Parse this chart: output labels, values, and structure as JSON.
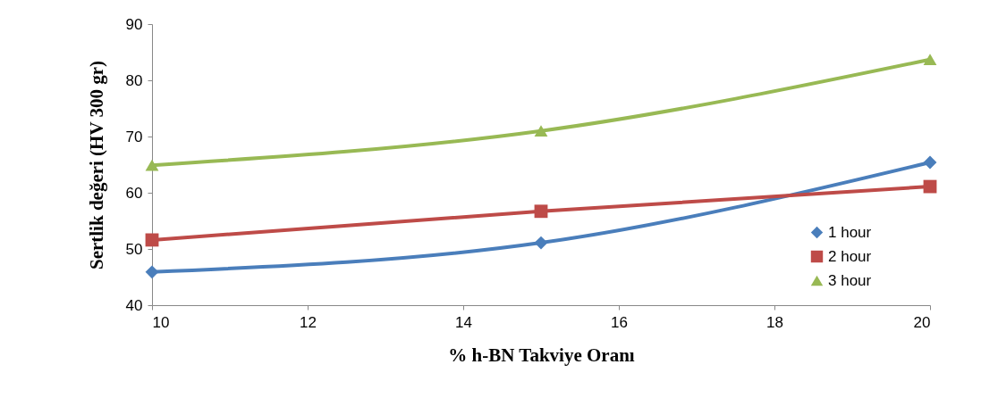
{
  "chart_data": {
    "type": "line",
    "xlabel": "% h-BN Takviye Oranı",
    "ylabel": "Sertlik değeri  (HV 300 gr)",
    "x": [
      10,
      15,
      20
    ],
    "series": [
      {
        "name": "1 hour",
        "color": "#4a7ebb",
        "marker": "diamond",
        "values": [
          45.9,
          51.1,
          65.4
        ]
      },
      {
        "name": "2 hour",
        "color": "#be4b48",
        "marker": "square",
        "values": [
          51.6,
          56.7,
          61.1
        ]
      },
      {
        "name": "3 hour",
        "color": "#98b954",
        "marker": "triangle",
        "values": [
          64.9,
          71.0,
          83.7
        ]
      }
    ],
    "xlim": [
      10,
      20
    ],
    "xticks": [
      10,
      12,
      14,
      16,
      18,
      20
    ],
    "ylim": [
      40,
      90
    ],
    "yticks": [
      40,
      50,
      60,
      70,
      80,
      90
    ],
    "grid": false,
    "legend": "right",
    "line_style": "solid"
  }
}
